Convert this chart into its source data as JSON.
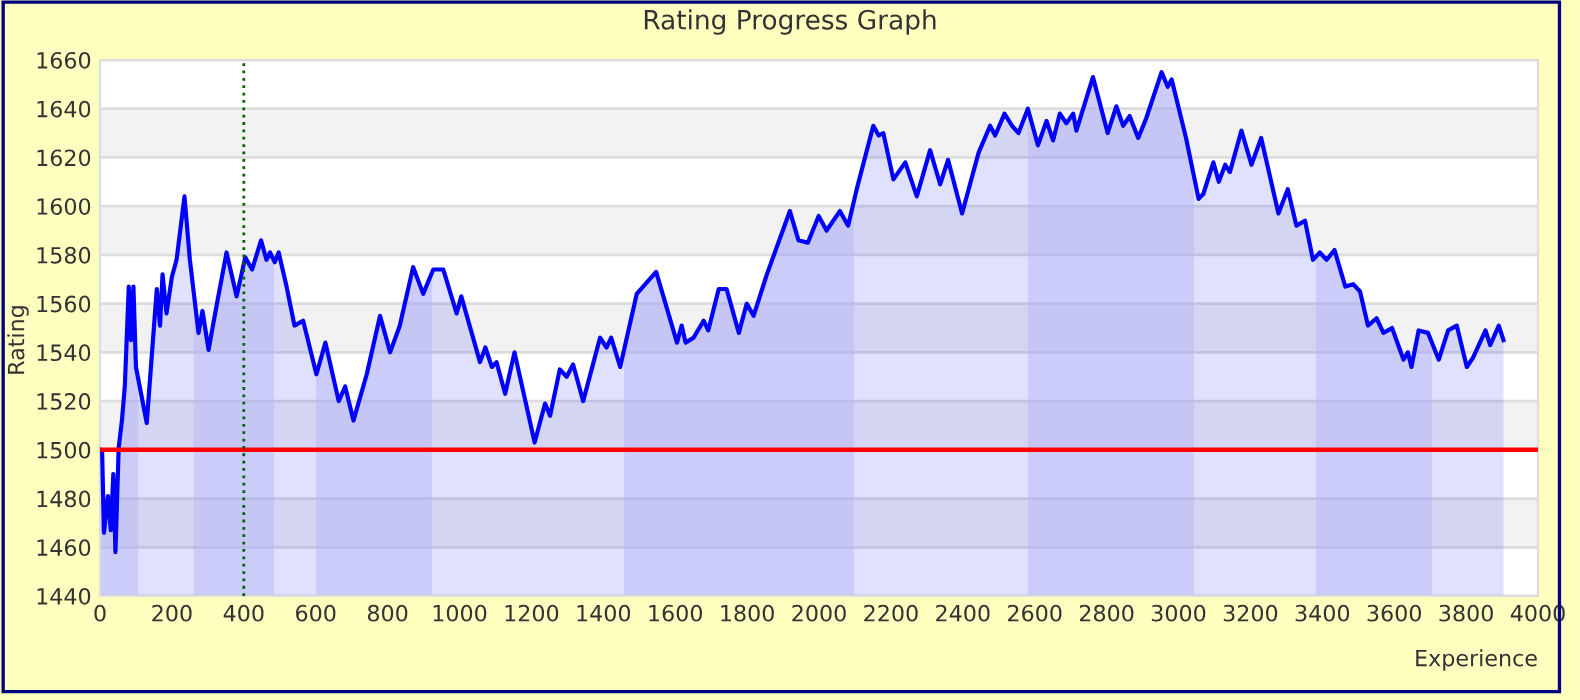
{
  "chart_data": {
    "type": "area",
    "title": "Rating Progress Graph",
    "xlabel": "Experience",
    "ylabel": "Rating",
    "xlim": [
      0,
      4000
    ],
    "xticks": [
      0,
      200,
      400,
      600,
      800,
      1000,
      1200,
      1400,
      1600,
      1800,
      2000,
      2200,
      2400,
      2600,
      2800,
      3000,
      3200,
      3400,
      3600,
      3800,
      4000
    ],
    "ylim": [
      1440,
      1660
    ],
    "yticks": [
      1440,
      1460,
      1480,
      1500,
      1520,
      1540,
      1560,
      1580,
      1600,
      1620,
      1640,
      1660
    ],
    "grid": "y",
    "legend": false,
    "series": [
      {
        "color": "#0000ff",
        "x": [
          0,
          6,
          11,
          22,
          30,
          37,
          43,
          52,
          61,
          69,
          80,
          86,
          93,
          100,
          130,
          158,
          167,
          174,
          185,
          200,
          213,
          235,
          250,
          274,
          285,
          302,
          324,
          352,
          380,
          404,
          423,
          448,
          463,
          473,
          486,
          497,
          519,
          541,
          565,
          602,
          627,
          664,
          682,
          705,
          742,
          779,
          807,
          834,
          871,
          899,
          927,
          955,
          992,
          1005,
          1057,
          1072,
          1090,
          1103,
          1127,
          1153,
          1209,
          1238,
          1252,
          1279,
          1298,
          1316,
          1344,
          1391,
          1409,
          1422,
          1447,
          1493,
          1547,
          1605,
          1618,
          1629,
          1651,
          1679,
          1692,
          1721,
          1743,
          1777,
          1799,
          1818,
          1855,
          1919,
          1943,
          1969,
          1999,
          2021,
          2058,
          2081,
          2105,
          2151,
          2166,
          2179,
          2207,
          2240,
          2272,
          2309,
          2337,
          2359,
          2398,
          2444,
          2476,
          2490,
          2516,
          2537,
          2555,
          2581,
          2609,
          2633,
          2651,
          2670,
          2688,
          2707,
          2716,
          2762,
          2803,
          2827,
          2846,
          2864,
          2888,
          2910,
          2953,
          2970,
          2981,
          3021,
          3056,
          3069,
          3097,
          3112,
          3130,
          3143,
          3175,
          3203,
          3230,
          3278,
          3304,
          3328,
          3352,
          3374,
          3393,
          3412,
          3434,
          3464,
          3486,
          3505,
          3527,
          3551,
          3570,
          3594,
          3626,
          3638,
          3648,
          3668,
          3694,
          3724,
          3750,
          3774,
          3802,
          3820,
          3854,
          3867,
          3891,
          3904
        ],
        "values": [
          1500,
          1499,
          1466,
          1481,
          1467,
          1490,
          1458,
          1501,
          1512,
          1526,
          1567,
          1545,
          1567,
          1534,
          1511,
          1566,
          1551,
          1572,
          1556,
          1571,
          1578,
          1604,
          1578,
          1548,
          1557,
          1541,
          1559,
          1581,
          1563,
          1579,
          1574,
          1586,
          1578,
          1581,
          1577,
          1581,
          1567,
          1551,
          1553,
          1531,
          1544,
          1520,
          1526,
          1512,
          1531,
          1555,
          1540,
          1551,
          1575,
          1564,
          1574,
          1574,
          1556,
          1563,
          1536,
          1542,
          1534,
          1536,
          1523,
          1540,
          1503,
          1519,
          1514,
          1533,
          1530,
          1535,
          1520,
          1546,
          1542,
          1546,
          1534,
          1564,
          1573,
          1544,
          1551,
          1544,
          1546,
          1553,
          1549,
          1566,
          1566,
          1548,
          1560,
          1555,
          1572,
          1598,
          1586,
          1585,
          1596,
          1590,
          1598,
          1592,
          1607,
          1633,
          1629,
          1630,
          1611,
          1618,
          1604,
          1623,
          1609,
          1619,
          1597,
          1622,
          1633,
          1629,
          1638,
          1633,
          1630,
          1640,
          1625,
          1635,
          1627,
          1638,
          1634,
          1638,
          1631,
          1653,
          1630,
          1641,
          1633,
          1637,
          1628,
          1636,
          1655,
          1649,
          1652,
          1628,
          1603,
          1605,
          1618,
          1610,
          1617,
          1614,
          1631,
          1617,
          1628,
          1597,
          1607,
          1592,
          1594,
          1578,
          1581,
          1578,
          1582,
          1567,
          1568,
          1565,
          1551,
          1554,
          1548,
          1550,
          1537,
          1540,
          1534,
          1549,
          1548,
          1537,
          1549,
          1551,
          1534,
          1538,
          1549,
          1543,
          1551,
          1545
        ]
      }
    ],
    "ref_lines": [
      {
        "axis": "y",
        "value": 1500,
        "color": "#ff0000",
        "line_style": "solid"
      },
      {
        "axis": "x",
        "value": 400,
        "color": "#006400",
        "line_style": "dotted"
      }
    ],
    "bands": [
      {
        "axis": "x",
        "from": 0,
        "to": 106,
        "color": "#b8b8f8"
      },
      {
        "axis": "x",
        "from": 261,
        "to": 484,
        "color": "#b8b8f8"
      },
      {
        "axis": "x",
        "from": 601,
        "to": 923,
        "color": "#b8b8f8"
      },
      {
        "axis": "x",
        "from": 1458,
        "to": 2097,
        "color": "#b8b8f8"
      },
      {
        "axis": "x",
        "from": 2581,
        "to": 3043,
        "color": "#b8b8f8"
      },
      {
        "axis": "x",
        "from": 3382,
        "to": 3705,
        "color": "#b8b8f8"
      }
    ]
  }
}
